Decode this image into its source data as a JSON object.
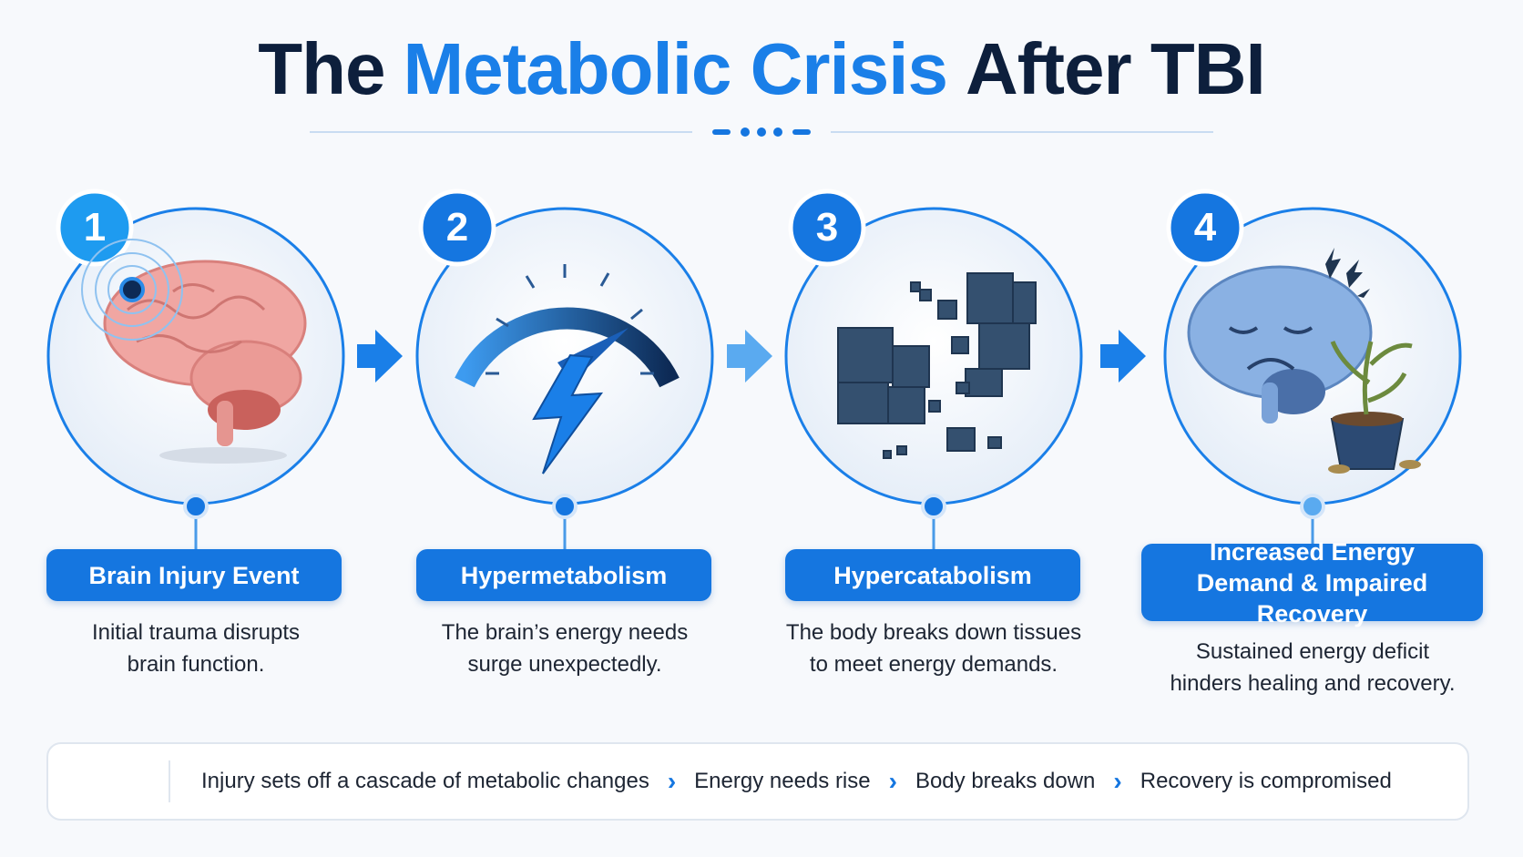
{
  "title": [
    "The",
    "Metabolic Crisis",
    "After TBI"
  ],
  "steps": [
    {
      "number": "1",
      "label": "Brain Injury Event",
      "description": "Initial trauma disrupts brain function."
    },
    {
      "number": "2",
      "label": "Hypermetabolism",
      "description": "The brain’s energy needs surge unexpectedly."
    },
    {
      "number": "3",
      "label": "Hypercatabolism",
      "description": "The body breaks down tissues to meet energy demands."
    },
    {
      "number": "4",
      "label": "Increased Energy Demand & Impaired Recovery",
      "description": "Sustained energy deficit hinders healing and recovery."
    }
  ],
  "footer": {
    "intro": "Injury sets off a cascade of metabolic changes",
    "chain": [
      "Energy needs rise",
      "Body breaks down",
      "Recovery is compromised"
    ]
  }
}
